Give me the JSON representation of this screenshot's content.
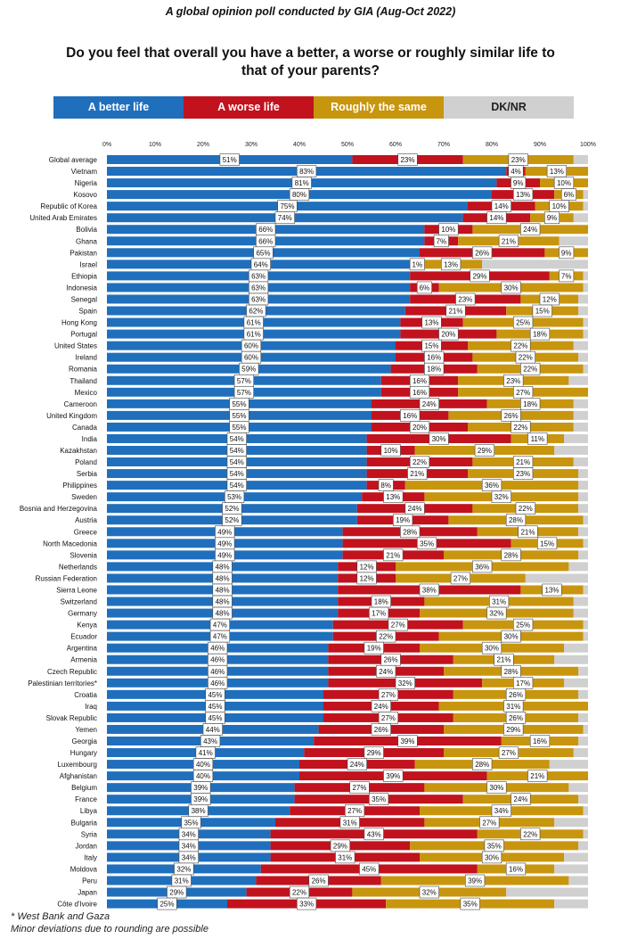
{
  "header": {
    "subtitle": "A global opinion poll conducted by GIA (Aug-Oct 2022)",
    "title_line1": "Do you feel that overall you have a better, a worse or roughly similar life to",
    "title_line2": "that of your parents?"
  },
  "legend": {
    "better": "A better life",
    "worse": "A worse life",
    "same": "Roughly the same",
    "dk": "DK/NR"
  },
  "colors": {
    "better": "#1f6fbd",
    "worse": "#c1121d",
    "same": "#c8950e",
    "dk": "#d0d0d0"
  },
  "footnote": {
    "line1": "* West Bank and Gaza",
    "line2": "Minor deviations due to rounding are possible"
  },
  "chart_data": {
    "type": "bar",
    "orientation": "horizontal",
    "stacked": true,
    "xlim": [
      0,
      100
    ],
    "x_ticks": [
      "0%",
      "10%",
      "20%",
      "30%",
      "40%",
      "50%",
      "60%",
      "70%",
      "80%",
      "90%",
      "100%"
    ],
    "categories": [
      "Global average",
      "Vietnam",
      "Nigeria",
      "Kosovo",
      "Republic of Korea",
      "United Arab Emirates",
      "Bolivia",
      "Ghana",
      "Pakistan",
      "Israel",
      "Ethiopia",
      "Indonesia",
      "Senegal",
      "Spain",
      "Hong Kong",
      "Portugal",
      "United States",
      "Ireland",
      "Romania",
      "Thailand",
      "Mexico",
      "Cameroon",
      "United Kingdom",
      "Canada",
      "India",
      "Kazakhstan",
      "Poland",
      "Serbia",
      "Philippines",
      "Sweden",
      "Bosnia and Herzegovina",
      "Austria",
      "Greece",
      "North Macedonia",
      "Slovenia",
      "Netherlands",
      "Russian Federation",
      "Sierra Leone",
      "Switzerland",
      "Germany",
      "Kenya",
      "Ecuador",
      "Argentina",
      "Armenia",
      "Czech Republic",
      "Palestinian territories*",
      "Croatia",
      "Iraq",
      "Slovak Republic",
      "Yemen",
      "Georgia",
      "Hungary",
      "Luxembourg",
      "Afghanistan",
      "Belgium",
      "France",
      "Libya",
      "Bulgaria",
      "Syria",
      "Jordan",
      "Italy",
      "Moldova",
      "Peru",
      "Japan",
      "Côte d'Ivoire"
    ],
    "series": [
      {
        "name": "A better life",
        "values": [
          51,
          83,
          81,
          80,
          75,
          74,
          66,
          66,
          65,
          64,
          63,
          63,
          63,
          62,
          61,
          61,
          60,
          60,
          59,
          57,
          57,
          55,
          55,
          55,
          54,
          54,
          54,
          54,
          54,
          53,
          52,
          52,
          49,
          49,
          49,
          48,
          48,
          48,
          48,
          48,
          47,
          47,
          46,
          46,
          46,
          46,
          45,
          45,
          45,
          44,
          43,
          41,
          40,
          40,
          39,
          39,
          38,
          35,
          34,
          34,
          34,
          32,
          31,
          29,
          25
        ]
      },
      {
        "name": "A worse life",
        "values": [
          23,
          4,
          9,
          13,
          14,
          14,
          10,
          7,
          26,
          1,
          29,
          6,
          23,
          21,
          13,
          20,
          15,
          16,
          18,
          16,
          16,
          24,
          16,
          20,
          30,
          10,
          22,
          21,
          8,
          13,
          24,
          19,
          28,
          35,
          21,
          12,
          12,
          38,
          18,
          17,
          27,
          22,
          19,
          26,
          24,
          32,
          27,
          24,
          27,
          26,
          39,
          29,
          24,
          39,
          27,
          35,
          27,
          31,
          43,
          29,
          31,
          45,
          26,
          22,
          33
        ]
      },
      {
        "name": "Roughly the same",
        "values": [
          23,
          13,
          10,
          6,
          10,
          9,
          24,
          21,
          9,
          13,
          7,
          30,
          12,
          15,
          25,
          18,
          22,
          22,
          22,
          23,
          27,
          18,
          26,
          22,
          11,
          29,
          21,
          23,
          36,
          32,
          22,
          28,
          21,
          15,
          28,
          36,
          27,
          13,
          31,
          32,
          25,
          30,
          30,
          21,
          28,
          17,
          26,
          31,
          26,
          29,
          16,
          27,
          28,
          21,
          30,
          24,
          34,
          27,
          22,
          35,
          30,
          16,
          39,
          32,
          35
        ]
      },
      {
        "name": "DK/NR",
        "values": [
          3,
          0,
          0,
          1,
          1,
          3,
          0,
          6,
          0,
          22,
          1,
          1,
          2,
          2,
          1,
          1,
          3,
          2,
          1,
          4,
          0,
          3,
          3,
          3,
          5,
          7,
          3,
          2,
          2,
          2,
          2,
          1,
          2,
          1,
          2,
          4,
          13,
          1,
          3,
          3,
          1,
          1,
          5,
          7,
          2,
          5,
          2,
          0,
          2,
          1,
          2,
          3,
          8,
          0,
          4,
          2,
          1,
          7,
          1,
          2,
          5,
          7,
          4,
          17,
          7
        ]
      }
    ],
    "labels_better": [
      "51%",
      "83%",
      "81%",
      "80%",
      "75%",
      "74%",
      "66%",
      "66%",
      "65%",
      "64%",
      "63%",
      "63%",
      "63%",
      "62%",
      "61%",
      "61%",
      "60%",
      "60%",
      "59%",
      "57%",
      "57%",
      "55%",
      "55%",
      "55%",
      "54%",
      "54%",
      "54%",
      "54%",
      "54%",
      "53%",
      "52%",
      "52%",
      "49%",
      "49%",
      "49%",
      "48%",
      "48%",
      "48%",
      "48%",
      "48%",
      "47%",
      "47%",
      "46%",
      "46%",
      "46%",
      "46%",
      "45%",
      "45%",
      "45%",
      "44%",
      "43%",
      "41%",
      "40%",
      "40%",
      "39%",
      "39%",
      "38%",
      "35%",
      "34%",
      "34%",
      "34%",
      "32%",
      "31%",
      "29%",
      "25%"
    ],
    "labels_worse": [
      "23%",
      "4%",
      "9%",
      "13%",
      "14%",
      "14%",
      "10%",
      "7%",
      "26%",
      "1%",
      "29%",
      "6%",
      "23%",
      "21%",
      "13%",
      "20%",
      "15%",
      "16%",
      "18%",
      "16%",
      "16%",
      "24%",
      "16%",
      "20%",
      "30%",
      "10%",
      "22%",
      "21%",
      "8%",
      "13%",
      "24%",
      "19%",
      "28%",
      "35%",
      "21%",
      "12%",
      "12%",
      "38%",
      "18%",
      "17%",
      "27%",
      "22%",
      "19%",
      "26%",
      "24%",
      "32%",
      "27%",
      "24%",
      "27%",
      "26%",
      "39%",
      "29%",
      "24%",
      "39%",
      "27%",
      "35%",
      "27%",
      "31%",
      "43%",
      "29%",
      "31%",
      "45%",
      "26%",
      "22%",
      "33%"
    ],
    "labels_same": [
      "23%",
      "13%",
      "10%",
      "6%",
      "10%",
      "9%",
      "24%",
      "21%",
      "9%",
      "13%",
      "7%",
      "30%",
      "12%",
      "15%",
      "25%",
      "18%",
      "22%",
      "22%",
      "22%",
      "23%",
      "27%",
      "18%",
      "26%",
      "22%",
      "11%",
      "29%",
      "21%",
      "23%",
      "36%",
      "32%",
      "22%",
      "28%",
      "21%",
      "15%",
      "28%",
      "36%",
      "27%",
      "13%",
      "31%",
      "32%",
      "25%",
      "30%",
      "30%",
      "21%",
      "28%",
      "17%",
      "26%",
      "31%",
      "26%",
      "29%",
      "16%",
      "27%",
      "28%",
      "21%",
      "30%",
      "24%",
      "34%",
      "27%",
      "22%",
      "35%",
      "30%",
      "16%",
      "39%",
      "32%",
      "35%"
    ]
  }
}
